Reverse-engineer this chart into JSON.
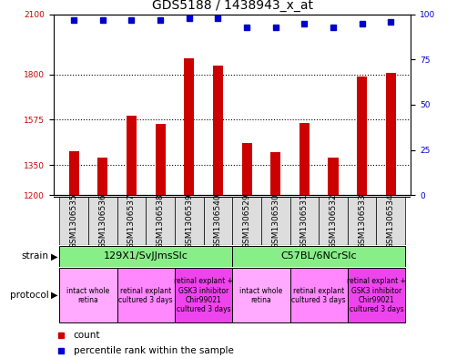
{
  "title": "GDS5188 / 1438943_x_at",
  "samples": [
    "GSM1306535",
    "GSM1306536",
    "GSM1306537",
    "GSM1306538",
    "GSM1306539",
    "GSM1306540",
    "GSM1306529",
    "GSM1306530",
    "GSM1306531",
    "GSM1306532",
    "GSM1306533",
    "GSM1306534"
  ],
  "counts": [
    1420,
    1385,
    1595,
    1555,
    1880,
    1845,
    1460,
    1415,
    1560,
    1385,
    1790,
    1810
  ],
  "percentiles": [
    97,
    97,
    97,
    97,
    98,
    98,
    93,
    93,
    95,
    93,
    95,
    96
  ],
  "ylim_left": [
    1200,
    2100
  ],
  "ylim_right": [
    0,
    100
  ],
  "yticks_left": [
    1200,
    1350,
    1575,
    1800,
    2100
  ],
  "yticks_right": [
    0,
    25,
    50,
    75,
    100
  ],
  "bar_color": "#cc0000",
  "dot_color": "#0000cc",
  "bar_width": 0.35,
  "strains": [
    {
      "label": "129X1/SvJJmsSlc",
      "start": 0,
      "end": 6
    },
    {
      "label": "C57BL/6NCrSlc",
      "start": 6,
      "end": 12
    }
  ],
  "protocols": [
    {
      "label": "intact whole\nretina",
      "start": 0,
      "end": 2,
      "color": "#ffaaff"
    },
    {
      "label": "retinal explant\ncultured 3 days",
      "start": 2,
      "end": 4,
      "color": "#ff88ff"
    },
    {
      "label": "retinal explant +\nGSK3 inhibitor\nChir99021\ncultured 3 days",
      "start": 4,
      "end": 6,
      "color": "#ee44ee"
    },
    {
      "label": "intact whole\nretina",
      "start": 6,
      "end": 8,
      "color": "#ffaaff"
    },
    {
      "label": "retinal explant\ncultured 3 days",
      "start": 8,
      "end": 10,
      "color": "#ff88ff"
    },
    {
      "label": "retinal explant +\nGSK3 inhibitor\nChir99021\ncultured 3 days",
      "start": 10,
      "end": 12,
      "color": "#ee44ee"
    }
  ],
  "strain_color": "#88ee88",
  "sample_bg_color": "#dddddd",
  "bg_color": "#ffffff",
  "tick_label_color_left": "#cc0000",
  "tick_label_color_right": "#0000cc",
  "dotted_line_color": "#000000",
  "label_fontsize": 6.5,
  "title_fontsize": 10,
  "sample_fontsize": 6.5,
  "strain_fontsize": 8,
  "protocol_fontsize": 5.5,
  "legend_fontsize": 7.5
}
